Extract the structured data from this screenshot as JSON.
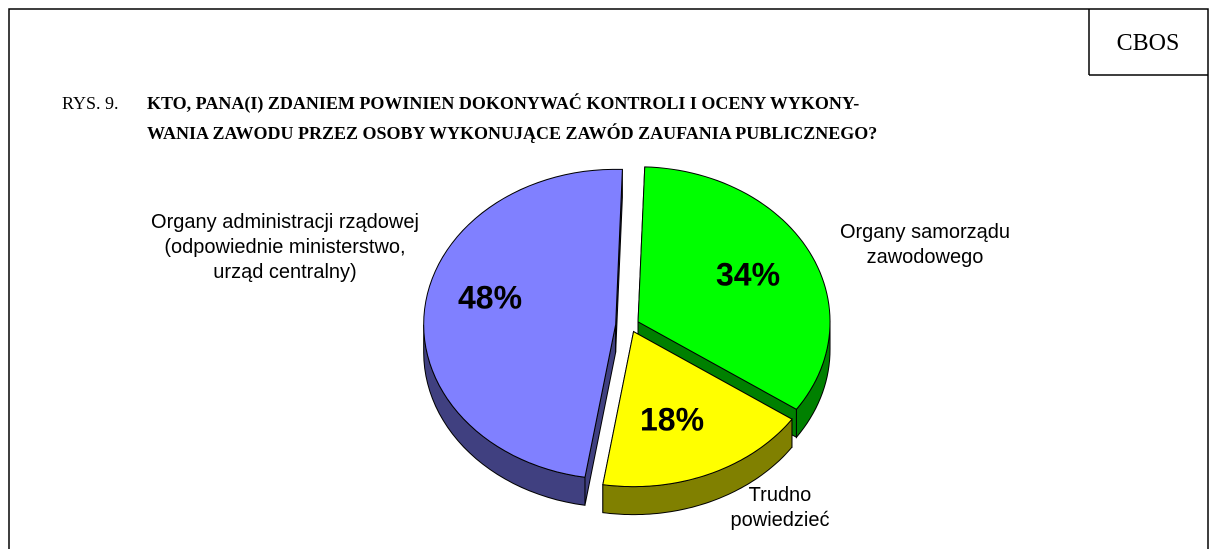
{
  "header": {
    "source": "CBOS",
    "figure": "RYS. 9."
  },
  "chart_data": {
    "type": "pie",
    "title_lines": [
      "KTO, PANA(I) ZDANIEM POWINIEN DOKONYWAĆ KONTROLI I OCENY WYKONY-",
      "WANIA ZAWODU PRZEZ OSOBY WYKONUJĄCE ZAWÓD ZAUFANIA PUBLICZNEGO?"
    ],
    "categories": [
      "Organy samorządu\nzawodowego",
      "Trudno\npowiedzieć",
      "Organy administracji rządowej\n(odpowiednie ministerstwo,\nurząd centralny)"
    ],
    "values": [
      34,
      18,
      48
    ],
    "value_labels": [
      "34%",
      "18%",
      "48%"
    ],
    "colors": [
      "#00ff00",
      "#ffff00",
      "#8080ff"
    ],
    "side_colors": [
      "#008000",
      "#808000",
      "#404080"
    ]
  }
}
